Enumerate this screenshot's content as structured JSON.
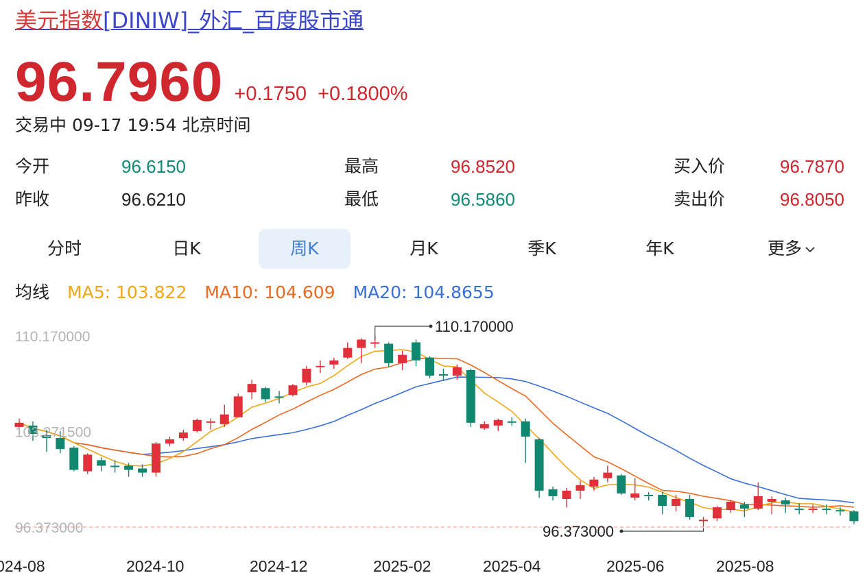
{
  "header": {
    "title_name": "美元指数",
    "title_rest": "[DINIW]_外汇_百度股市通"
  },
  "quote": {
    "price": "96.7960",
    "change": "+0.1750",
    "change_pct": "+0.1800%",
    "status": "交易中 09-17 19:54 北京时间"
  },
  "stats": {
    "open_label": "今开",
    "open_value": "96.6150",
    "high_label": "最高",
    "high_value": "96.8520",
    "bid_label": "买入价",
    "bid_value": "96.7870",
    "prev_close_label": "昨收",
    "prev_close_value": "96.6210",
    "low_label": "最低",
    "low_value": "96.5860",
    "ask_label": "卖出价",
    "ask_value": "96.8050"
  },
  "tabs": [
    {
      "label": "分时",
      "active": false
    },
    {
      "label": "日K",
      "active": false
    },
    {
      "label": "周K",
      "active": true
    },
    {
      "label": "月K",
      "active": false
    },
    {
      "label": "季K",
      "active": false
    },
    {
      "label": "年K",
      "active": false
    },
    {
      "label": "更多",
      "active": false
    }
  ],
  "ma": {
    "label": "均线",
    "ma5": "MA5: 103.822",
    "ma10": "MA10: 104.609",
    "ma20": "MA20: 104.8655"
  },
  "colors": {
    "up": "#e0303a",
    "down": "#12876f",
    "ma5": "#f2a614",
    "ma10": "#ea6a24",
    "ma20": "#3a6fd8",
    "accent": "#3f7fd6"
  },
  "chart_data": {
    "type": "candlestick",
    "y_axis_labels": [
      "110.170000",
      "103.271500",
      "96.373000"
    ],
    "ylim": [
      96.373,
      110.17
    ],
    "max_label": "110.170000",
    "min_label": "96.373000",
    "x_tick_labels": [
      "024-08",
      "2024-10",
      "2024-12",
      "2025-02",
      "2025-04",
      "2025-06",
      "2025-08"
    ],
    "candles": [
      {
        "o": 103.6,
        "c": 103.9,
        "h": 104.2,
        "l": 103.1
      },
      {
        "o": 103.7,
        "c": 103.1,
        "h": 104.0,
        "l": 102.6
      },
      {
        "o": 103.0,
        "c": 102.8,
        "h": 103.4,
        "l": 101.8
      },
      {
        "o": 102.8,
        "c": 102.0,
        "h": 103.3,
        "l": 101.7
      },
      {
        "o": 102.1,
        "c": 100.5,
        "h": 102.2,
        "l": 100.4
      },
      {
        "o": 100.4,
        "c": 101.6,
        "h": 101.7,
        "l": 100.2
      },
      {
        "o": 101.2,
        "c": 100.8,
        "h": 101.4,
        "l": 100.4
      },
      {
        "o": 100.8,
        "c": 100.7,
        "h": 101.2,
        "l": 100.3
      },
      {
        "o": 100.8,
        "c": 100.5,
        "h": 101.0,
        "l": 100.0
      },
      {
        "o": 100.6,
        "c": 100.3,
        "h": 100.9,
        "l": 100.0
      },
      {
        "o": 100.3,
        "c": 102.4,
        "h": 102.5,
        "l": 100.0
      },
      {
        "o": 102.4,
        "c": 102.7,
        "h": 102.9,
        "l": 102.2
      },
      {
        "o": 102.8,
        "c": 103.2,
        "h": 103.4,
        "l": 102.6
      },
      {
        "o": 103.3,
        "c": 104.1,
        "h": 104.2,
        "l": 103.2
      },
      {
        "o": 103.9,
        "c": 104.0,
        "h": 104.2,
        "l": 103.4
      },
      {
        "o": 103.8,
        "c": 104.5,
        "h": 105.2,
        "l": 103.6
      },
      {
        "o": 104.3,
        "c": 105.8,
        "h": 106.0,
        "l": 104.3
      },
      {
        "o": 106.1,
        "c": 106.7,
        "h": 107.0,
        "l": 105.6
      },
      {
        "o": 106.4,
        "c": 105.6,
        "h": 106.5,
        "l": 105.4
      },
      {
        "o": 105.8,
        "c": 105.7,
        "h": 106.2,
        "l": 105.3
      },
      {
        "o": 105.9,
        "c": 106.6,
        "h": 106.7,
        "l": 105.8
      },
      {
        "o": 106.8,
        "c": 107.8,
        "h": 108.0,
        "l": 106.6
      },
      {
        "o": 107.9,
        "c": 108.0,
        "h": 108.4,
        "l": 107.5
      },
      {
        "o": 108.1,
        "c": 108.4,
        "h": 108.6,
        "l": 107.8
      },
      {
        "o": 108.6,
        "c": 109.3,
        "h": 109.7,
        "l": 108.5
      },
      {
        "o": 109.3,
        "c": 109.9,
        "h": 110.0,
        "l": 108.2
      },
      {
        "o": 109.7,
        "c": 109.7,
        "h": 110.17,
        "l": 109.3
      },
      {
        "o": 109.6,
        "c": 108.2,
        "h": 109.7,
        "l": 107.9
      },
      {
        "o": 108.2,
        "c": 108.8,
        "h": 109.1,
        "l": 107.7
      },
      {
        "o": 109.7,
        "c": 108.4,
        "h": 109.9,
        "l": 108.0
      },
      {
        "o": 108.6,
        "c": 107.3,
        "h": 108.7,
        "l": 107.1
      },
      {
        "o": 107.4,
        "c": 107.3,
        "h": 107.8,
        "l": 106.9
      },
      {
        "o": 107.3,
        "c": 107.9,
        "h": 108.1,
        "l": 107.0
      },
      {
        "o": 107.7,
        "c": 103.9,
        "h": 107.8,
        "l": 103.6
      },
      {
        "o": 103.5,
        "c": 103.8,
        "h": 104.0,
        "l": 103.4
      },
      {
        "o": 103.7,
        "c": 104.1,
        "h": 104.2,
        "l": 103.3
      },
      {
        "o": 104.0,
        "c": 103.9,
        "h": 104.3,
        "l": 103.7
      },
      {
        "o": 104.0,
        "c": 102.9,
        "h": 104.2,
        "l": 101.0
      },
      {
        "o": 102.7,
        "c": 99.0,
        "h": 102.8,
        "l": 98.5
      },
      {
        "o": 99.1,
        "c": 98.6,
        "h": 99.3,
        "l": 98.3
      },
      {
        "o": 98.4,
        "c": 99.0,
        "h": 99.2,
        "l": 97.8
      },
      {
        "o": 99.0,
        "c": 99.4,
        "h": 99.7,
        "l": 98.4
      },
      {
        "o": 99.3,
        "c": 99.8,
        "h": 100.0,
        "l": 99.0
      },
      {
        "o": 99.9,
        "c": 100.3,
        "h": 100.8,
        "l": 99.6
      },
      {
        "o": 100.1,
        "c": 98.8,
        "h": 100.2,
        "l": 98.7
      },
      {
        "o": 98.5,
        "c": 98.8,
        "h": 99.9,
        "l": 98.3
      },
      {
        "o": 98.7,
        "c": 98.6,
        "h": 98.9,
        "l": 98.3
      },
      {
        "o": 98.7,
        "c": 97.9,
        "h": 98.9,
        "l": 97.3
      },
      {
        "o": 97.9,
        "c": 98.4,
        "h": 98.7,
        "l": 97.5
      },
      {
        "o": 98.4,
        "c": 97.1,
        "h": 98.7,
        "l": 96.9
      },
      {
        "o": 96.8,
        "c": 96.9,
        "h": 97.1,
        "l": 96.4
      },
      {
        "o": 97.0,
        "c": 97.8,
        "h": 97.9,
        "l": 96.8
      },
      {
        "o": 97.6,
        "c": 98.2,
        "h": 98.3,
        "l": 97.4
      },
      {
        "o": 98.0,
        "c": 97.7,
        "h": 98.2,
        "l": 97.1
      },
      {
        "o": 97.7,
        "c": 98.6,
        "h": 99.6,
        "l": 97.6
      },
      {
        "o": 98.2,
        "c": 98.4,
        "h": 98.6,
        "l": 97.3
      },
      {
        "o": 98.3,
        "c": 98.0,
        "h": 98.5,
        "l": 97.4
      },
      {
        "o": 97.7,
        "c": 97.6,
        "h": 98.1,
        "l": 97.3
      },
      {
        "o": 97.6,
        "c": 97.7,
        "h": 98.0,
        "l": 97.4
      },
      {
        "o": 97.7,
        "c": 97.6,
        "h": 98.0,
        "l": 97.3
      },
      {
        "o": 97.6,
        "c": 97.5,
        "h": 97.8,
        "l": 97.2
      },
      {
        "o": 97.5,
        "c": 96.8,
        "h": 97.6,
        "l": 96.6
      }
    ]
  }
}
